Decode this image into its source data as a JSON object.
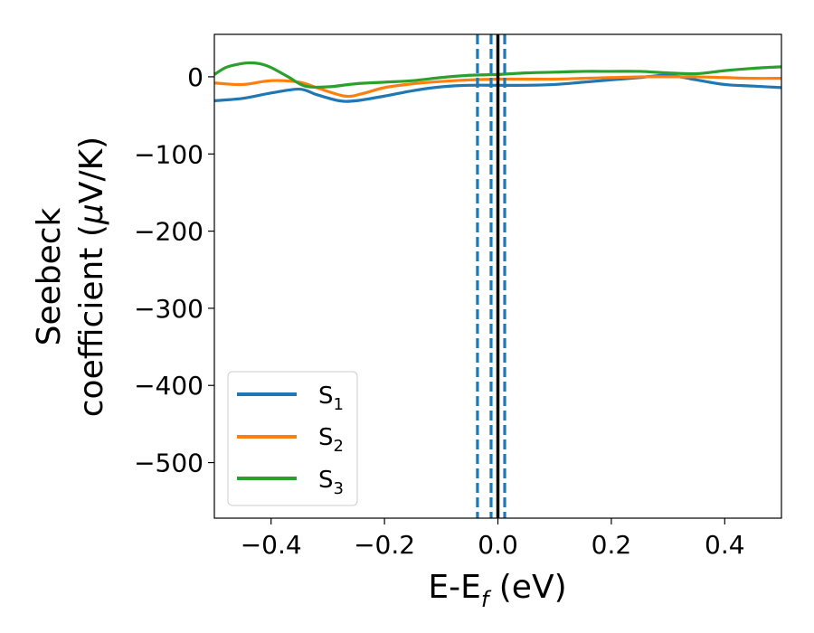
{
  "chart_data": {
    "type": "line",
    "xlabel": {
      "main": "E-E",
      "subscript": "f",
      "units": " (eV)"
    },
    "ylabel": {
      "line1": "Seebeck",
      "line2_prefix": "coefficient  (",
      "line2_mu": "μ",
      "line2_suffix": "V/K)"
    },
    "xlim": [
      -0.5,
      0.5
    ],
    "ylim": [
      -572,
      55
    ],
    "xticks": [
      -0.4,
      -0.2,
      0.0,
      0.2,
      0.4
    ],
    "xtick_labels": [
      "−0.4",
      "−0.2",
      "0.0",
      "0.2",
      "0.4"
    ],
    "yticks": [
      0,
      -100,
      -200,
      -300,
      -400,
      -500
    ],
    "ytick_labels": [
      "0",
      "−100",
      "−200",
      "−300",
      "−400",
      "−500"
    ],
    "grid": false,
    "legend_location": "lower-left",
    "vertical_lines": [
      {
        "x": -0.036,
        "style": "dashed",
        "color": "#1f77b4"
      },
      {
        "x": -0.012,
        "style": "dashed",
        "color": "#1f77b4"
      },
      {
        "x": 0.012,
        "style": "dashed",
        "color": "#1f77b4"
      },
      {
        "x": 0.0,
        "style": "solid",
        "color": "#000000"
      }
    ],
    "series": [
      {
        "name": "S",
        "subscript": "1",
        "color": "#1f77b4",
        "x": [
          -0.5,
          -0.45,
          -0.4,
          -0.35,
          -0.32,
          -0.28,
          -0.25,
          -0.2,
          -0.15,
          -0.1,
          -0.05,
          0.0,
          0.05,
          0.1,
          0.15,
          0.2,
          0.25,
          0.3,
          0.35,
          0.4,
          0.45,
          0.5
        ],
        "values": [
          -31,
          -28,
          -21,
          -16,
          -23,
          -31,
          -31,
          -25,
          -18,
          -13,
          -11,
          -11,
          -11,
          -10,
          -7,
          -4,
          -1,
          2,
          -4,
          -10,
          -12,
          -14
        ]
      },
      {
        "name": "S",
        "subscript": "2",
        "color": "#ff7f0e",
        "x": [
          -0.5,
          -0.45,
          -0.4,
          -0.35,
          -0.32,
          -0.27,
          -0.24,
          -0.2,
          -0.15,
          -0.1,
          -0.05,
          0.0,
          0.05,
          0.1,
          0.15,
          0.2,
          0.25,
          0.3,
          0.35,
          0.4,
          0.45,
          0.5
        ],
        "values": [
          -8,
          -10,
          -5,
          -7,
          -14,
          -25,
          -22,
          -14,
          -9,
          -6,
          -4,
          -3,
          -3,
          -3,
          -2,
          -1,
          0,
          0,
          0,
          -1,
          -2,
          -2
        ]
      },
      {
        "name": "S",
        "subscript": "3",
        "color": "#2ca02c",
        "x": [
          -0.5,
          -0.48,
          -0.46,
          -0.44,
          -0.42,
          -0.4,
          -0.37,
          -0.34,
          -0.3,
          -0.25,
          -0.2,
          -0.15,
          -0.1,
          -0.05,
          0.0,
          0.05,
          0.1,
          0.15,
          0.2,
          0.25,
          0.3,
          0.35,
          0.4,
          0.45,
          0.5
        ],
        "values": [
          3,
          12,
          16,
          18,
          17,
          12,
          0,
          -12,
          -13,
          -9,
          -7,
          -5,
          -1,
          2,
          3,
          5,
          6,
          7,
          7,
          7,
          5,
          4,
          8,
          11,
          13
        ]
      }
    ]
  }
}
